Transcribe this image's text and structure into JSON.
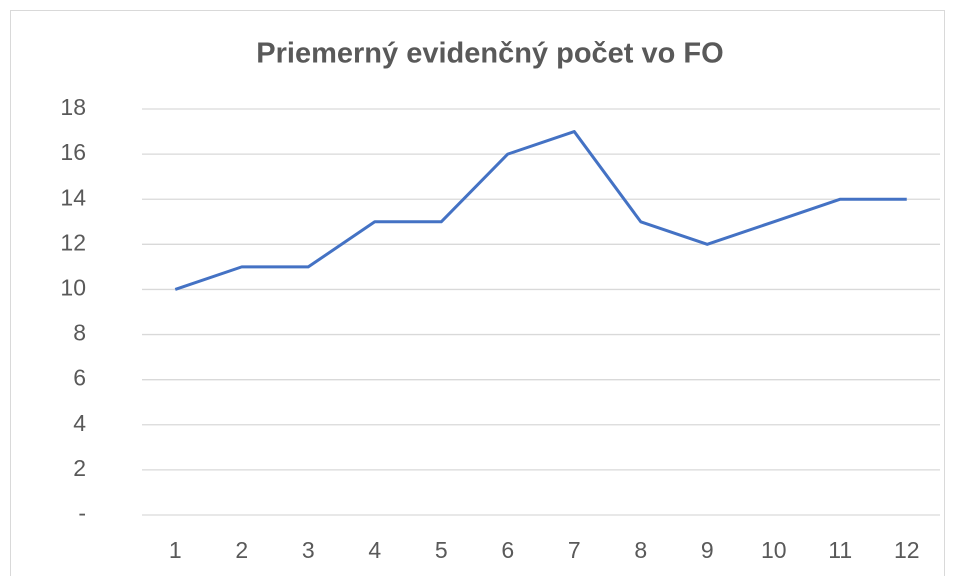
{
  "chart_data": {
    "type": "line",
    "title": "Priemerný evidenčný počet vo FO",
    "categories": [
      "1",
      "2",
      "3",
      "4",
      "5",
      "6",
      "7",
      "8",
      "9",
      "10",
      "11",
      "12"
    ],
    "series": [
      {
        "name": "Priemerný evidenčný počet",
        "color": "#4472c4",
        "values": [
          10,
          11,
          11,
          13,
          13,
          16,
          17,
          13,
          12,
          13,
          14,
          14
        ]
      }
    ],
    "ylim": [
      0,
      18
    ],
    "yticks": [
      {
        "value": 0,
        "label": "-"
      },
      2,
      4,
      6,
      8,
      10,
      12,
      14,
      16,
      18
    ],
    "grid": true
  }
}
